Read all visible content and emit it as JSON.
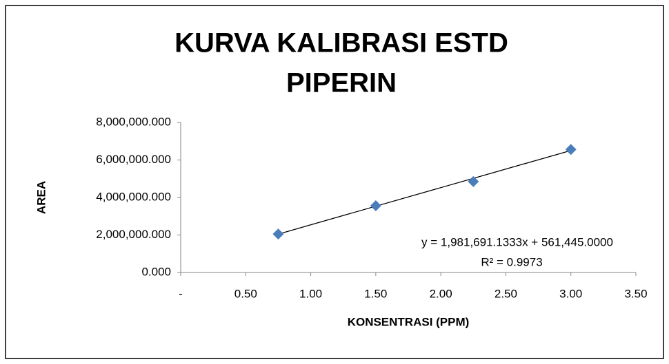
{
  "chart_data": {
    "type": "scatter",
    "title": [
      "KURVA KALIBRASI ESTD",
      "PIPERIN"
    ],
    "x_label": "KONSENTRASI (PPM)",
    "y_label": "AREA",
    "series": [
      {
        "name": "AREA",
        "color": "#4a7ebb",
        "x": [
          0.75,
          1.5,
          2.25,
          3.0
        ],
        "values": [
          2050000,
          3560000,
          4850000,
          6560000
        ]
      }
    ],
    "trendline": {
      "slope": 1981691.1333,
      "intercept": 561445.0,
      "equation": "y = 1,981,691.1333x + 561,445.0000",
      "r_squared": "R² = 0.9973"
    },
    "xlim": [
      0,
      3.5
    ],
    "xticks": [
      {
        "value": 0,
        "label": "-"
      },
      {
        "value": 0.5,
        "label": "0.50"
      },
      {
        "value": 1,
        "label": "1.00"
      },
      {
        "value": 1.5,
        "label": "1.50"
      },
      {
        "value": 2,
        "label": "2.00"
      },
      {
        "value": 2.5,
        "label": "2.50"
      },
      {
        "value": 3,
        "label": "3.00"
      },
      {
        "value": 3.5,
        "label": "3.50"
      }
    ],
    "ylim": [
      0,
      8000000
    ],
    "yticks": [
      {
        "value": 0,
        "label": "0.000"
      },
      {
        "value": 2000000,
        "label": "2,000,000.000"
      },
      {
        "value": 4000000,
        "label": "4,000,000.000"
      },
      {
        "value": 6000000,
        "label": "6,000,000.000"
      },
      {
        "value": 8000000,
        "label": "8,000,000.000"
      }
    ],
    "grid": false
  }
}
